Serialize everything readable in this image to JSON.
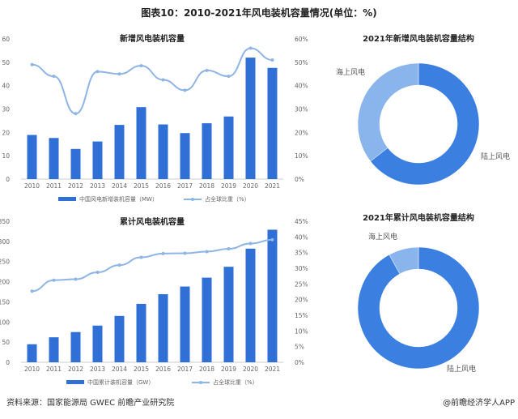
{
  "title": "图表10：2010-2021年风电装机容量情况(单位：%)",
  "footer": {
    "source": "资料来源：国家能源局 GWEC 前瞻产业研究院",
    "brand": "@前瞻经济学人APP"
  },
  "colors": {
    "bar": "#2f6fd6",
    "line": "#8fb4e6",
    "onshore": "#3b7fe0",
    "offshore": "#8ab4ec"
  },
  "chart_data": [
    {
      "type": "bar+line",
      "title": "新增风电装机容量",
      "categories": [
        "2010",
        "2011",
        "2012",
        "2013",
        "2014",
        "2015",
        "2016",
        "2017",
        "2018",
        "2019",
        "2020",
        "2021"
      ],
      "ylim": [
        0,
        60
      ],
      "y2lim": [
        0,
        60
      ],
      "yticks": [
        "0",
        "10",
        "20",
        "30",
        "40",
        "50",
        "60"
      ],
      "y2ticks": [
        "0%",
        "10%",
        "20%",
        "30%",
        "40%",
        "50%",
        "60%"
      ],
      "series": [
        {
          "name": "中国风电新增装机容量（MW）",
          "type": "bar",
          "values": [
            18.9,
            17.6,
            12.9,
            16.1,
            23.2,
            30.8,
            23.4,
            19.7,
            23.9,
            26.8,
            52.0,
            47.6
          ]
        },
        {
          "name": "占全球比重（%）",
          "type": "line",
          "axis": "right",
          "values": [
            49,
            44,
            28,
            46,
            45,
            48.5,
            42.5,
            38,
            46.5,
            44,
            56,
            51
          ]
        }
      ]
    },
    {
      "type": "bar+line",
      "title": "累计风电装机容量",
      "categories": [
        "2010",
        "2011",
        "2012",
        "2013",
        "2014",
        "2015",
        "2016",
        "2017",
        "2018",
        "2019",
        "2020",
        "2021"
      ],
      "ylim": [
        0,
        350
      ],
      "y2lim": [
        0,
        45
      ],
      "yticks": [
        "0",
        "50",
        "100",
        "150",
        "200",
        "250",
        "300",
        "350"
      ],
      "y2ticks": [
        "0%",
        "5%",
        "10%",
        "15%",
        "20%",
        "25%",
        "30%",
        "35%",
        "40%",
        "45%"
      ],
      "series": [
        {
          "name": "中国累计装机容量（GW）",
          "type": "bar",
          "values": [
            44.7,
            62,
            75,
            91,
            115,
            145,
            169,
            188,
            210,
            237,
            282,
            329
          ]
        },
        {
          "name": "占全球比重（%）",
          "type": "line",
          "axis": "right",
          "values": [
            22.7,
            26.2,
            26.5,
            28.7,
            31,
            33.5,
            34.7,
            34.8,
            35.3,
            36.2,
            37.9,
            39.1
          ]
        }
      ]
    },
    {
      "type": "pie",
      "title": "2021年新增风电装机容量结构",
      "labels": [
        "陆上风电",
        "海上风电"
      ],
      "values": [
        64.5,
        35.5
      ]
    },
    {
      "type": "pie",
      "title": "2021年累计风电装机容量结构",
      "labels": [
        "陆上风电",
        "海上风电"
      ],
      "values": [
        92,
        8
      ]
    }
  ]
}
